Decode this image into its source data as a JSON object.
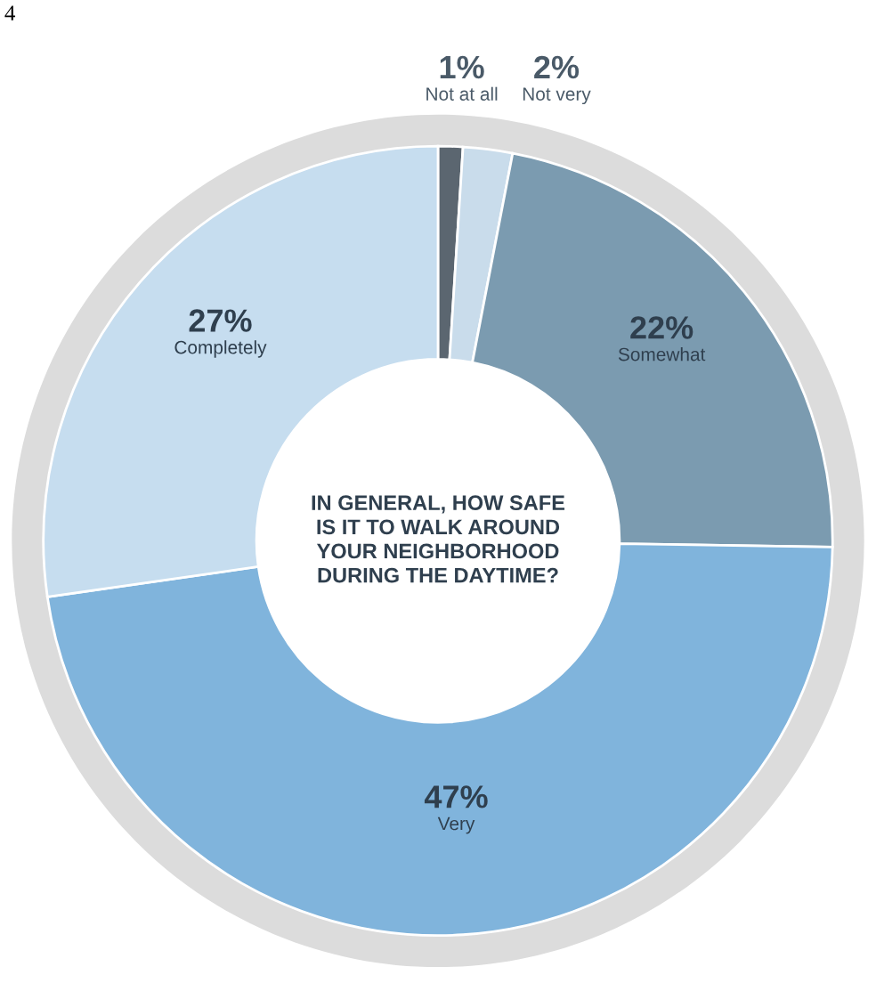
{
  "chart_data": {
    "type": "donut",
    "title": "IN GENERAL, HOW SAFE\nIS IT TO WALK AROUND\nYOUR NEIGHBORHOOD\nDURING THE DAYTIME?",
    "categories": [
      "Not at all",
      "Not very",
      "Somewhat",
      "Very",
      "Completely"
    ],
    "values": [
      1,
      2,
      22,
      47,
      27
    ],
    "colors": [
      "#5b6670",
      "#c9dceb",
      "#7b9bb0",
      "#80b4dc",
      "#c6ddef"
    ],
    "value_labels": [
      "1%",
      "2%",
      "22%",
      "47%",
      "27%"
    ],
    "annotations": [
      "4"
    ]
  }
}
